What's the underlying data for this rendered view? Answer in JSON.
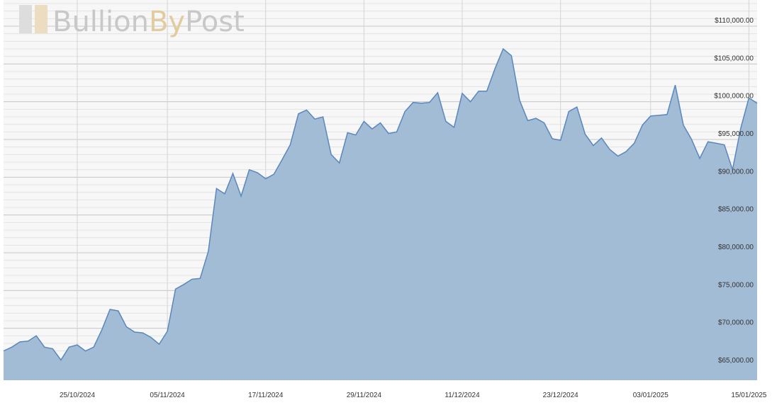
{
  "chart_data": {
    "type": "area",
    "watermark": [
      "Bullion",
      "By",
      "Post"
    ],
    "x": [
      "16/10/2024",
      "17/10/2024",
      "18/10/2024",
      "19/10/2024",
      "20/10/2024",
      "21/10/2024",
      "22/10/2024",
      "23/10/2024",
      "24/10/2024",
      "25/10/2024",
      "26/10/2024",
      "27/10/2024",
      "28/10/2024",
      "29/10/2024",
      "30/10/2024",
      "31/10/2024",
      "01/11/2024",
      "02/11/2024",
      "03/11/2024",
      "04/11/2024",
      "05/11/2024",
      "06/11/2024",
      "07/11/2024",
      "08/11/2024",
      "09/11/2024",
      "10/11/2024",
      "11/11/2024",
      "12/11/2024",
      "13/11/2024",
      "14/11/2024",
      "15/11/2024",
      "16/11/2024",
      "17/11/2024",
      "18/11/2024",
      "19/11/2024",
      "20/11/2024",
      "21/11/2024",
      "22/11/2024",
      "23/11/2024",
      "24/11/2024",
      "25/11/2024",
      "26/11/2024",
      "27/11/2024",
      "28/11/2024",
      "29/11/2024",
      "30/11/2024",
      "01/12/2024",
      "02/12/2024",
      "03/12/2024",
      "04/12/2024",
      "05/12/2024",
      "06/12/2024",
      "07/12/2024",
      "08/12/2024",
      "09/12/2024",
      "10/12/2024",
      "11/12/2024",
      "12/12/2024",
      "13/12/2024",
      "14/12/2024",
      "15/12/2024",
      "16/12/2024",
      "17/12/2024",
      "18/12/2024",
      "19/12/2024",
      "20/12/2024",
      "21/12/2024",
      "22/12/2024",
      "23/12/2024",
      "24/12/2024",
      "25/12/2024",
      "26/12/2024",
      "27/12/2024",
      "28/12/2024",
      "29/12/2024",
      "30/12/2024",
      "31/12/2024",
      "01/01/2025",
      "02/01/2025",
      "03/01/2025",
      "04/01/2025",
      "05/01/2025",
      "06/01/2025",
      "07/01/2025",
      "08/01/2025",
      "09/01/2025",
      "10/01/2025",
      "11/01/2025",
      "12/01/2025",
      "13/01/2025",
      "14/01/2025",
      "15/01/2025",
      "16/01/2025"
    ],
    "values": [
      67000,
      67500,
      68200,
      68300,
      69000,
      67500,
      67300,
      65800,
      67500,
      67800,
      67000,
      67500,
      69800,
      72500,
      72300,
      70200,
      69500,
      69400,
      68800,
      67900,
      69600,
      75200,
      75800,
      76500,
      76600,
      80200,
      88500,
      87800,
      90500,
      87500,
      91000,
      90600,
      89800,
      90400,
      92300,
      94300,
      98400,
      98900,
      97700,
      98000,
      93000,
      91900,
      95900,
      95600,
      97400,
      96400,
      97200,
      95800,
      96000,
      98700,
      99900,
      99800,
      99900,
      101200,
      97400,
      96600,
      101100,
      100000,
      101400,
      101400,
      104400,
      107000,
      106100,
      100200,
      97500,
      97800,
      97200,
      95100,
      94900,
      98700,
      99300,
      95700,
      94200,
      95200,
      93700,
      92800,
      93400,
      94500,
      96900,
      98100,
      98200,
      98300,
      102200,
      96900,
      95000,
      92500,
      94700,
      94500,
      94300,
      91000,
      96500,
      100500,
      99800
    ],
    "color": "#5a87bb",
    "fill_color": "#a3bcd6",
    "xlim": [
      "16/10/2024",
      "16/01/2025"
    ],
    "xticks": [
      "25/10/2024",
      "05/11/2024",
      "17/11/2024",
      "29/11/2024",
      "11/12/2024",
      "23/12/2024",
      "03/01/2025",
      "15/01/2025"
    ],
    "ylim": [
      63125,
      113470
    ],
    "yticks": [
      {
        "value": 65000,
        "label": "$65,000.00"
      },
      {
        "value": 70000,
        "label": "$70,000.00"
      },
      {
        "value": 75000,
        "label": "$75,000.00"
      },
      {
        "value": 80000,
        "label": "$80,000.00"
      },
      {
        "value": 85000,
        "label": "$85,000.00"
      },
      {
        "value": 90000,
        "label": "$90,000.00"
      },
      {
        "value": 95000,
        "label": "$95,000.00"
      },
      {
        "value": 100000,
        "label": "$100,000.00"
      },
      {
        "value": 105000,
        "label": "$105,000.00"
      },
      {
        "value": 110000,
        "label": "$110,000.00"
      }
    ],
    "grid": true,
    "minor_grid_step": 1000
  }
}
